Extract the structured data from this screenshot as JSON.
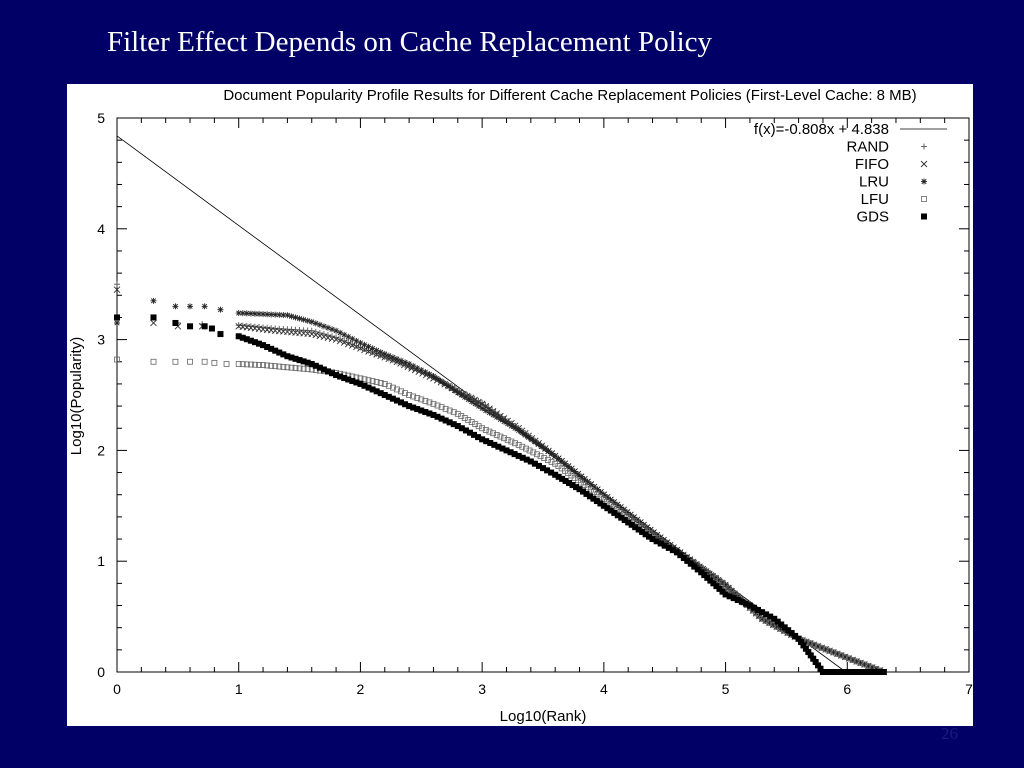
{
  "slide": {
    "title": "Filter Effect Depends on Cache Replacement Policy",
    "page_number": "26",
    "background_color": "#000066",
    "title_color": "#ffffff"
  },
  "chart_data": {
    "type": "scatter",
    "title": "Document Popularity Profile Results for Different Cache Replacement Policies (First-Level Cache: 8 MB)",
    "xlabel": "Log10(Rank)",
    "ylabel": "Log10(Popularity)",
    "xlim": [
      0,
      7
    ],
    "ylim": [
      0,
      5
    ],
    "xticks": [
      "0",
      "1",
      "2",
      "3",
      "4",
      "5",
      "6",
      "7"
    ],
    "yticks": [
      "0",
      "1",
      "2",
      "3",
      "4",
      "5"
    ],
    "grid": false,
    "legend_position": "top-right",
    "fit_line": {
      "label": "f(x)=-0.808x + 4.838",
      "slope": -0.808,
      "intercept": 4.838
    },
    "series": [
      {
        "name": "RAND",
        "marker": "plus",
        "points": [
          [
            0,
            3.5
          ],
          [
            0.3,
            3.2
          ],
          [
            0.5,
            3.15
          ],
          [
            0.7,
            3.14
          ],
          [
            1,
            3.13
          ],
          [
            1.3,
            3.1
          ],
          [
            1.6,
            3.08
          ],
          [
            1.8,
            3.02
          ],
          [
            2,
            2.93
          ],
          [
            2.3,
            2.8
          ],
          [
            2.6,
            2.66
          ],
          [
            3,
            2.43
          ],
          [
            3.3,
            2.2
          ],
          [
            3.6,
            1.95
          ],
          [
            4,
            1.6
          ],
          [
            4.3,
            1.35
          ],
          [
            4.6,
            1.1
          ],
          [
            5,
            0.79
          ],
          [
            5.3,
            0.48
          ],
          [
            5.6,
            0.3
          ],
          [
            6.3,
            0
          ]
        ]
      },
      {
        "name": "FIFO",
        "marker": "cross",
        "points": [
          [
            0,
            3.45
          ],
          [
            0.3,
            3.15
          ],
          [
            0.5,
            3.12
          ],
          [
            0.7,
            3.12
          ],
          [
            1,
            3.12
          ],
          [
            1.3,
            3.08
          ],
          [
            1.6,
            3.05
          ],
          [
            1.8,
            3.0
          ],
          [
            2,
            2.92
          ],
          [
            2.3,
            2.8
          ],
          [
            2.6,
            2.65
          ],
          [
            3,
            2.42
          ],
          [
            3.3,
            2.2
          ],
          [
            3.6,
            1.95
          ],
          [
            4,
            1.6
          ],
          [
            4.3,
            1.35
          ],
          [
            4.6,
            1.1
          ],
          [
            5,
            0.78
          ],
          [
            5.3,
            0.48
          ],
          [
            5.6,
            0.3
          ],
          [
            6.3,
            0
          ]
        ]
      },
      {
        "name": "LRU",
        "marker": "star",
        "points": [
          [
            0,
            3.15
          ],
          [
            0.3,
            3.35
          ],
          [
            0.48,
            3.3
          ],
          [
            0.6,
            3.3
          ],
          [
            0.72,
            3.3
          ],
          [
            0.85,
            3.27
          ],
          [
            1,
            3.24
          ],
          [
            1.2,
            3.23
          ],
          [
            1.4,
            3.22
          ],
          [
            1.6,
            3.16
          ],
          [
            1.8,
            3.08
          ],
          [
            2,
            2.97
          ],
          [
            2.2,
            2.87
          ],
          [
            2.4,
            2.78
          ],
          [
            2.6,
            2.67
          ],
          [
            2.8,
            2.52
          ],
          [
            3,
            2.38
          ],
          [
            3.3,
            2.18
          ],
          [
            3.6,
            1.95
          ],
          [
            4,
            1.6
          ],
          [
            4.3,
            1.35
          ],
          [
            4.6,
            1.1
          ],
          [
            5,
            0.79
          ],
          [
            5.3,
            0.48
          ],
          [
            5.6,
            0.3
          ],
          [
            6.3,
            0
          ]
        ]
      },
      {
        "name": "LFU",
        "marker": "square-open",
        "points": [
          [
            0,
            2.82
          ],
          [
            0.3,
            2.8
          ],
          [
            0.48,
            2.8
          ],
          [
            0.6,
            2.8
          ],
          [
            0.72,
            2.8
          ],
          [
            0.8,
            2.79
          ],
          [
            0.9,
            2.78
          ],
          [
            1,
            2.78
          ],
          [
            1.2,
            2.77
          ],
          [
            1.4,
            2.75
          ],
          [
            1.6,
            2.73
          ],
          [
            1.8,
            2.7
          ],
          [
            2,
            2.65
          ],
          [
            2.2,
            2.6
          ],
          [
            2.4,
            2.5
          ],
          [
            2.6,
            2.42
          ],
          [
            2.8,
            2.33
          ],
          [
            3,
            2.2
          ],
          [
            3.3,
            2.05
          ],
          [
            3.6,
            1.88
          ],
          [
            4,
            1.56
          ],
          [
            4.3,
            1.32
          ],
          [
            4.6,
            1.08
          ],
          [
            5,
            0.78
          ],
          [
            5.3,
            0.48
          ],
          [
            5.6,
            0.3
          ],
          [
            6.3,
            0
          ]
        ]
      },
      {
        "name": "GDS",
        "marker": "square-filled",
        "points": [
          [
            0,
            3.2
          ],
          [
            0.3,
            3.2
          ],
          [
            0.48,
            3.15
          ],
          [
            0.6,
            3.12
          ],
          [
            0.72,
            3.12
          ],
          [
            0.78,
            3.1
          ],
          [
            0.85,
            3.05
          ],
          [
            1,
            3.03
          ],
          [
            1.2,
            2.95
          ],
          [
            1.4,
            2.85
          ],
          [
            1.6,
            2.78
          ],
          [
            1.8,
            2.68
          ],
          [
            2,
            2.6
          ],
          [
            2.2,
            2.5
          ],
          [
            2.4,
            2.4
          ],
          [
            2.6,
            2.32
          ],
          [
            2.8,
            2.22
          ],
          [
            3,
            2.1
          ],
          [
            3.2,
            2.0
          ],
          [
            3.4,
            1.9
          ],
          [
            3.6,
            1.78
          ],
          [
            3.8,
            1.65
          ],
          [
            4,
            1.5
          ],
          [
            4.2,
            1.35
          ],
          [
            4.4,
            1.2
          ],
          [
            4.6,
            1.08
          ],
          [
            4.8,
            0.9
          ],
          [
            5,
            0.7
          ],
          [
            5.2,
            0.6
          ],
          [
            5.4,
            0.48
          ],
          [
            5.6,
            0.3
          ],
          [
            5.8,
            0
          ],
          [
            6.3,
            0
          ]
        ]
      }
    ]
  }
}
